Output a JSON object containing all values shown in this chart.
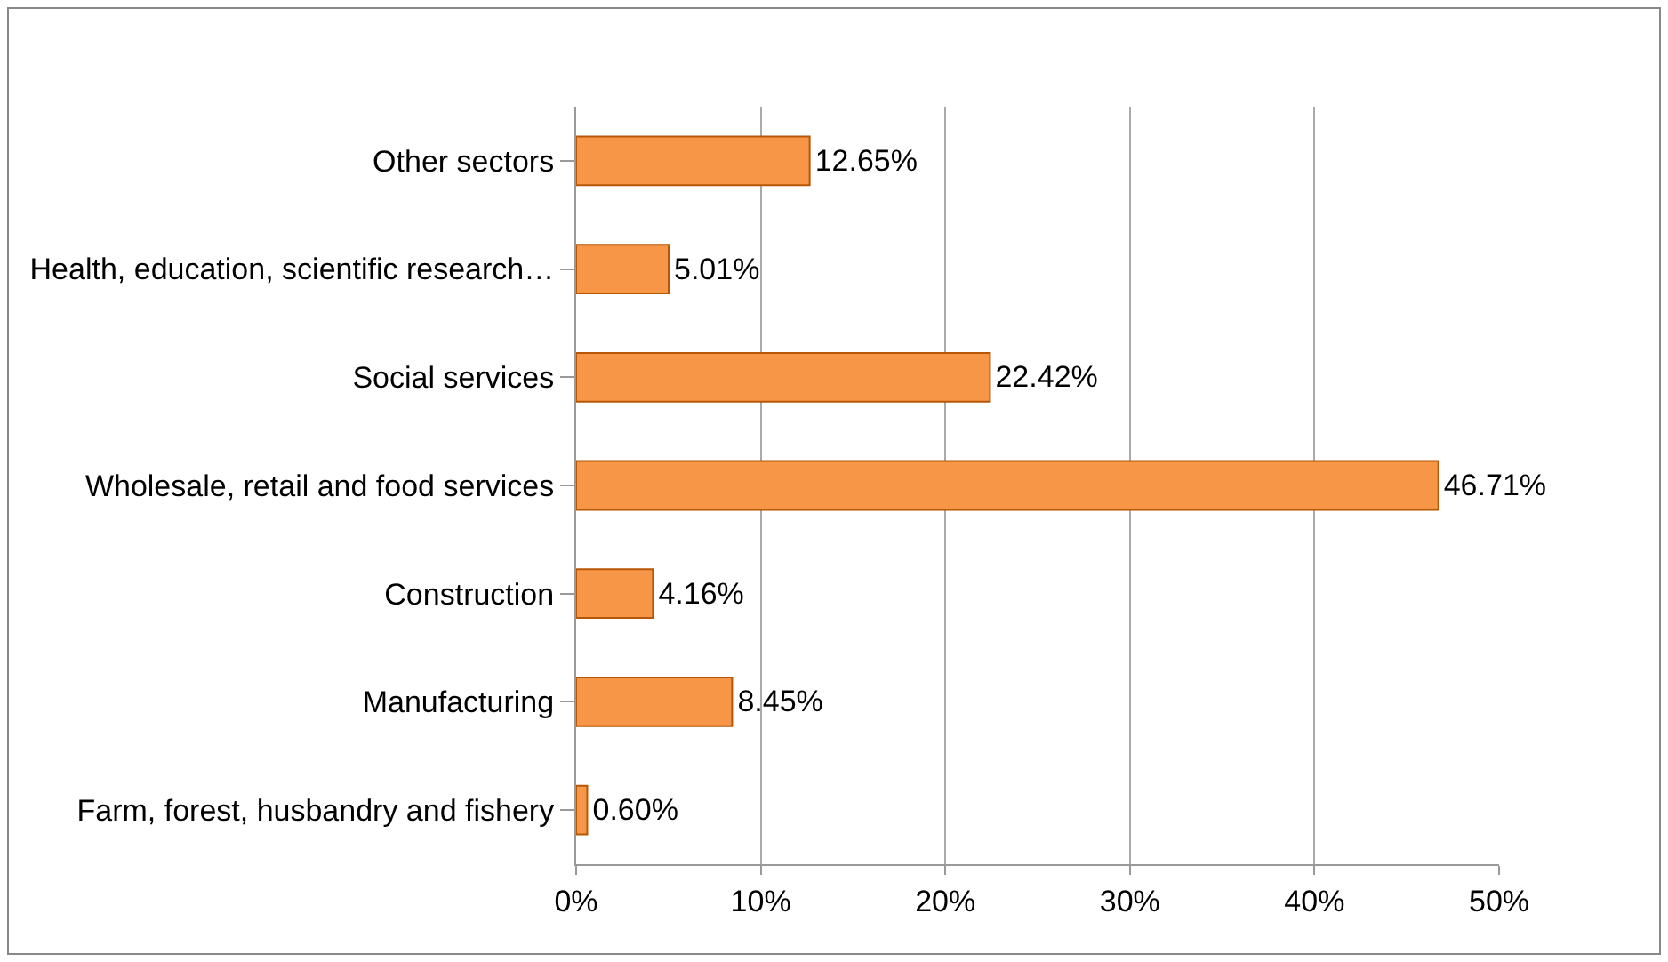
{
  "chart_data": {
    "type": "bar",
    "orientation": "horizontal",
    "categories": [
      "Other sectors",
      "Health, education, scientific research…",
      "Social services",
      "Wholesale, retail and food services",
      "Construction",
      "Manufacturing",
      "Farm, forest, husbandry and fishery"
    ],
    "values": [
      12.65,
      5.01,
      22.42,
      46.71,
      4.16,
      8.45,
      0.6
    ],
    "value_labels": [
      "12.65%",
      "5.01%",
      "22.42%",
      "46.71%",
      "4.16%",
      "8.45%",
      "0.60%"
    ],
    "color": "#f79646",
    "xlim": [
      0,
      50
    ],
    "xticks": [
      {
        "value": 0,
        "label": "0%"
      },
      {
        "value": 10,
        "label": "10%"
      },
      {
        "value": 20,
        "label": "20%"
      },
      {
        "value": 30,
        "label": "30%"
      },
      {
        "value": 40,
        "label": "40%"
      },
      {
        "value": 50,
        "label": "50%"
      }
    ],
    "grid": "x"
  }
}
